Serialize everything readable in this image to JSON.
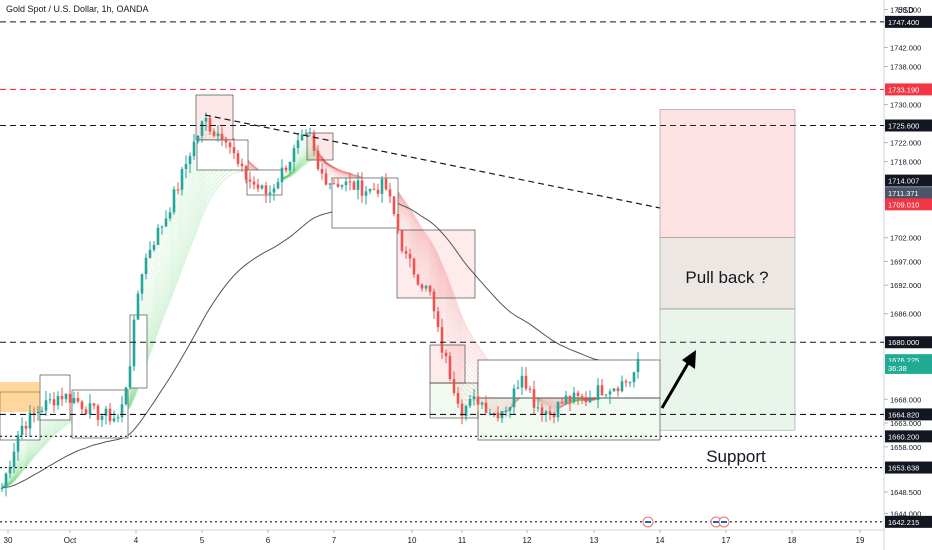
{
  "header": {
    "title": "Gold Spot / U.S. Dollar, 1h, OANDA",
    "currency": "USD"
  },
  "annotations": {
    "pullback": "Pull back ?",
    "support": "Support"
  },
  "price_axis": {
    "ticks": [
      "1750.000",
      "1742.000",
      "1738.000",
      "1730.000",
      "1722.000",
      "1718.000",
      "1702.000",
      "1697.000",
      "1692.000",
      "1686.000",
      "1668.000",
      "1663.000",
      "1658.000",
      "1648.500",
      "1644.000"
    ],
    "ticks_y": [
      1750,
      1742,
      1738,
      1730,
      1722,
      1718,
      1702,
      1697,
      1692,
      1686,
      1668,
      1663,
      1658,
      1648.5,
      1644
    ],
    "tags": [
      {
        "label": "1747.400",
        "value": 1747.4,
        "style": "dark"
      },
      {
        "label": "1733.190",
        "value": 1733.19,
        "style": "red"
      },
      {
        "label": "1725.600",
        "value": 1725.6,
        "style": "dark"
      },
      {
        "label": "1714.007",
        "value": 1714.007,
        "style": "dark"
      },
      {
        "label": "1711.371",
        "value": 1711.371,
        "style": "slate"
      },
      {
        "label": "1709.010",
        "value": 1709.01,
        "style": "red"
      },
      {
        "label": "1680.000",
        "value": 1680.0,
        "style": "dark"
      },
      {
        "label": "1676.225",
        "value": 1676.225,
        "style": "teal"
      },
      {
        "label": "36:38",
        "value": 1674.6,
        "style": "teal"
      },
      {
        "label": "1664.820",
        "value": 1664.82,
        "style": "dark"
      },
      {
        "label": "1660.200",
        "value": 1660.2,
        "style": "dark"
      },
      {
        "label": "1653.638",
        "value": 1653.638,
        "style": "dark"
      },
      {
        "label": "1642.215",
        "value": 1642.215,
        "style": "dark"
      }
    ]
  },
  "time_axis": {
    "labels": [
      "30",
      "Oct",
      "4",
      "5",
      "6",
      "7",
      "10",
      "11",
      "12",
      "13",
      "14",
      "17",
      "18",
      "19"
    ]
  },
  "colors": {
    "up": "#26a69a",
    "down": "#ef5350",
    "dashed_red": "#f23645",
    "tag_dark": "#131722",
    "tag_teal": "#22ab94",
    "tag_slate": "#4a5568",
    "grid": "#f0f3fa"
  },
  "chart_data": {
    "type": "candlestick",
    "title": "Gold Spot / U.S. Dollar, 1h, OANDA",
    "currency": "USD",
    "ylim": [
      1640.5,
      1752
    ],
    "x_labels": [
      "30",
      "Oct",
      "4",
      "5",
      "6",
      "7",
      "10",
      "11",
      "12",
      "13",
      "14",
      "17",
      "18",
      "19"
    ],
    "horizontal_levels": [
      {
        "value": 1747.4,
        "style": "black-dashed"
      },
      {
        "value": 1733.19,
        "style": "red-dashed"
      },
      {
        "value": 1725.6,
        "style": "black-dashed"
      },
      {
        "value": 1680.0,
        "style": "black-dashed"
      },
      {
        "value": 1664.82,
        "style": "black-dashed"
      },
      {
        "value": 1660.2,
        "style": "black-dotted"
      },
      {
        "value": 1653.638,
        "style": "black-dotted"
      },
      {
        "value": 1642.215,
        "style": "black-dotted"
      }
    ],
    "last_price": 1676.225,
    "countdown": "36:38",
    "price_anchors": [
      [
        0,
        1648
      ],
      [
        20,
        1662
      ],
      [
        40,
        1666
      ],
      [
        60,
        1669
      ],
      [
        75,
        1668
      ],
      [
        95,
        1665
      ],
      [
        120,
        1664
      ],
      [
        130,
        1676
      ],
      [
        140,
        1694
      ],
      [
        150,
        1700
      ],
      [
        165,
        1706
      ],
      [
        180,
        1714
      ],
      [
        190,
        1720
      ],
      [
        205,
        1727
      ],
      [
        215,
        1724
      ],
      [
        225,
        1724
      ],
      [
        240,
        1716
      ],
      [
        255,
        1713
      ],
      [
        268,
        1711
      ],
      [
        285,
        1717
      ],
      [
        300,
        1722
      ],
      [
        310,
        1723
      ],
      [
        318,
        1716
      ],
      [
        330,
        1714
      ],
      [
        350,
        1713
      ],
      [
        370,
        1712
      ],
      [
        385,
        1713
      ],
      [
        395,
        1706
      ],
      [
        405,
        1698
      ],
      [
        420,
        1693
      ],
      [
        430,
        1690
      ],
      [
        440,
        1680
      ],
      [
        452,
        1672
      ],
      [
        462,
        1666
      ],
      [
        478,
        1668
      ],
      [
        495,
        1665
      ],
      [
        510,
        1667
      ],
      [
        522,
        1674
      ],
      [
        535,
        1667
      ],
      [
        550,
        1665
      ],
      [
        565,
        1668
      ],
      [
        585,
        1668
      ],
      [
        600,
        1670
      ],
      [
        615,
        1671
      ],
      [
        630,
        1672
      ],
      [
        640,
        1676
      ]
    ],
    "projection_boxes": {
      "target_top": 1729,
      "entry_mid": 1702,
      "entry_low": 1687,
      "stop_low": 1661.5
    }
  }
}
